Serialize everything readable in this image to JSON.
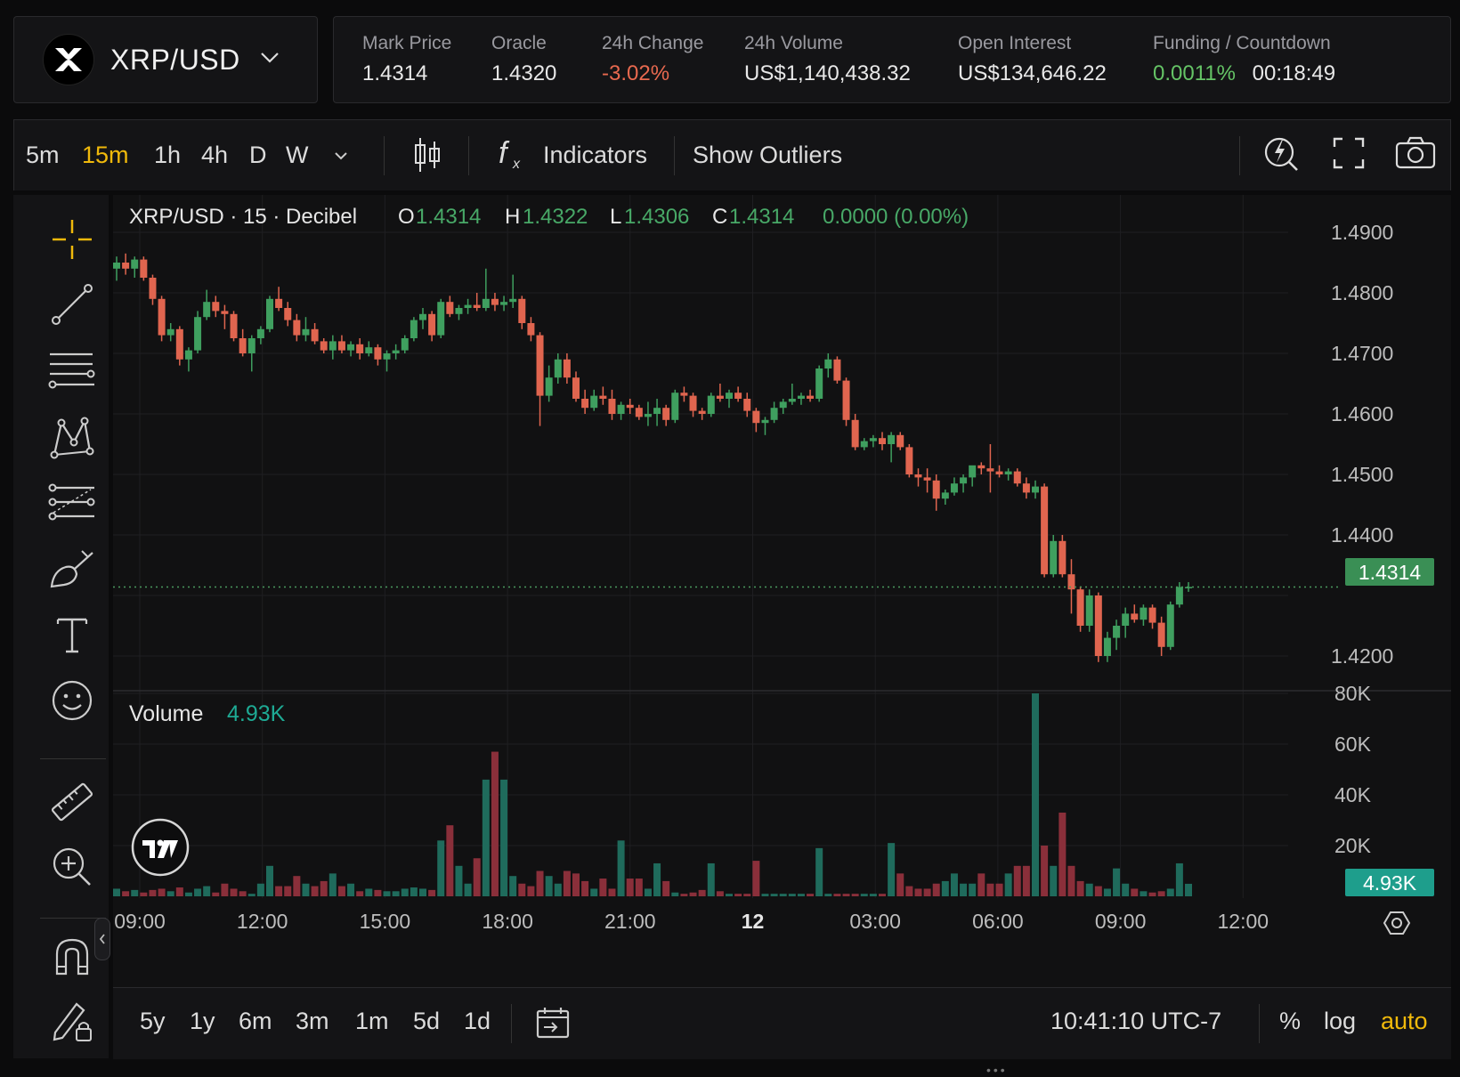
{
  "symbol": {
    "name": "XRP/USD"
  },
  "stats": {
    "mark_price": {
      "label": "Mark Price",
      "value": "1.4314"
    },
    "oracle": {
      "label": "Oracle",
      "value": "1.4320"
    },
    "change_24h": {
      "label": "24h Change",
      "value": "-3.02%"
    },
    "volume_24h": {
      "label": "24h Volume",
      "value": "US$1,140,438.32"
    },
    "open_interest": {
      "label": "Open Interest",
      "value": "US$134,646.22"
    },
    "funding": {
      "label": "Funding / Countdown",
      "rate": "0.0011%",
      "countdown": "00:18:49"
    }
  },
  "toolbar": {
    "intervals": [
      "5m",
      "15m",
      "1h",
      "4h",
      "D",
      "W"
    ],
    "active_interval": "15m",
    "indicators_label": "Indicators",
    "outliers_label": "Show Outliers"
  },
  "legend": {
    "title": "XRP/USD · 15 · Decibel",
    "o_label": "O",
    "o": "1.4314",
    "h_label": "H",
    "h": "1.4322",
    "l_label": "L",
    "l": "1.4306",
    "c_label": "C",
    "c": "1.4314",
    "change": "0.0000 (0.00%)",
    "volume_label": "Volume",
    "volume_value": "4.93K"
  },
  "colors": {
    "up": "#3f9f5f",
    "down": "#e0654f",
    "vol_up": "#1f6b5c",
    "vol_down": "#8a2f3a",
    "accent": "#f0b90b",
    "price_tag": "#3a8f55",
    "vol_tag": "#1e9e8c"
  },
  "price_axis": {
    "ticks": [
      "1.4900",
      "1.4800",
      "1.4700",
      "1.4600",
      "1.4500",
      "1.4400",
      "1.4200"
    ],
    "current": "1.4314"
  },
  "volume_axis": {
    "ticks": [
      "80K",
      "60K",
      "40K",
      "20K"
    ],
    "current": "4.93K"
  },
  "time_axis": {
    "ticks": [
      "09:00",
      "12:00",
      "15:00",
      "18:00",
      "21:00",
      "12",
      "03:00",
      "06:00",
      "09:00",
      "12:00"
    ]
  },
  "ranges": [
    "5y",
    "1y",
    "6m",
    "3m",
    "1m",
    "5d",
    "1d"
  ],
  "bottom": {
    "clock": "10:41:10 UTC-7",
    "percent": "%",
    "log": "log",
    "auto": "auto"
  },
  "chart_data": {
    "type": "candlestick",
    "ylim": [
      1.4175,
      1.4925
    ],
    "vol_ylim": [
      0,
      80000
    ],
    "candles": [
      [
        1.484,
        1.486,
        1.482,
        1.485,
        3000
      ],
      [
        1.485,
        1.4865,
        1.483,
        1.484,
        2000
      ],
      [
        1.484,
        1.486,
        1.4825,
        1.4855,
        2500
      ],
      [
        1.4855,
        1.486,
        1.482,
        1.4825,
        1500
      ],
      [
        1.4825,
        1.483,
        1.478,
        1.479,
        2500
      ],
      [
        1.479,
        1.4795,
        1.472,
        1.473,
        3000
      ],
      [
        1.473,
        1.475,
        1.472,
        1.474,
        2000
      ],
      [
        1.474,
        1.4745,
        1.468,
        1.469,
        3500
      ],
      [
        1.469,
        1.471,
        1.467,
        1.4705,
        1500
      ],
      [
        1.4705,
        1.477,
        1.47,
        1.476,
        3000
      ],
      [
        1.476,
        1.4805,
        1.4755,
        1.4785,
        4000
      ],
      [
        1.4785,
        1.4795,
        1.476,
        1.477,
        1500
      ],
      [
        1.477,
        1.478,
        1.474,
        1.4765,
        5000
      ],
      [
        1.4765,
        1.477,
        1.472,
        1.4725,
        3000
      ],
      [
        1.4725,
        1.474,
        1.4695,
        1.47,
        2000
      ],
      [
        1.47,
        1.473,
        1.467,
        1.4725,
        1000
      ],
      [
        1.4725,
        1.4745,
        1.4715,
        1.474,
        5000
      ],
      [
        1.474,
        1.4795,
        1.4735,
        1.479,
        12000
      ],
      [
        1.479,
        1.481,
        1.477,
        1.4775,
        4000
      ],
      [
        1.4775,
        1.4785,
        1.4745,
        1.4755,
        4000
      ],
      [
        1.4755,
        1.4765,
        1.472,
        1.473,
        8000
      ],
      [
        1.473,
        1.476,
        1.472,
        1.474,
        5000
      ],
      [
        1.474,
        1.475,
        1.4715,
        1.472,
        4000
      ],
      [
        1.472,
        1.4725,
        1.47,
        1.4705,
        6000
      ],
      [
        1.4705,
        1.473,
        1.469,
        1.472,
        9000
      ],
      [
        1.472,
        1.473,
        1.47,
        1.4705,
        4000
      ],
      [
        1.4705,
        1.472,
        1.4695,
        1.4715,
        5000
      ],
      [
        1.4715,
        1.4725,
        1.469,
        1.47,
        2000
      ],
      [
        1.47,
        1.472,
        1.4695,
        1.471,
        3000
      ],
      [
        1.471,
        1.4715,
        1.468,
        1.469,
        2500
      ],
      [
        1.469,
        1.4705,
        1.467,
        1.47,
        2000
      ],
      [
        1.47,
        1.4715,
        1.469,
        1.4705,
        2000
      ],
      [
        1.4705,
        1.473,
        1.47,
        1.4725,
        3000
      ],
      [
        1.4725,
        1.476,
        1.472,
        1.4755,
        3500
      ],
      [
        1.4755,
        1.4775,
        1.474,
        1.4765,
        3000
      ],
      [
        1.4765,
        1.477,
        1.472,
        1.473,
        2500
      ],
      [
        1.473,
        1.479,
        1.4725,
        1.4785,
        22000
      ],
      [
        1.4785,
        1.4795,
        1.476,
        1.4765,
        28000
      ],
      [
        1.4765,
        1.478,
        1.4755,
        1.4775,
        12000
      ],
      [
        1.4775,
        1.479,
        1.4765,
        1.478,
        5000
      ],
      [
        1.478,
        1.48,
        1.477,
        1.4775,
        15000
      ],
      [
        1.4775,
        1.484,
        1.477,
        1.479,
        46000
      ],
      [
        1.479,
        1.48,
        1.477,
        1.478,
        57000
      ],
      [
        1.478,
        1.4795,
        1.477,
        1.4785,
        46000
      ],
      [
        1.4785,
        1.483,
        1.4775,
        1.479,
        8000
      ],
      [
        1.479,
        1.4795,
        1.474,
        1.475,
        5000
      ],
      [
        1.475,
        1.476,
        1.472,
        1.473,
        4000
      ],
      [
        1.473,
        1.4735,
        1.458,
        1.463,
        10000
      ],
      [
        1.463,
        1.468,
        1.462,
        1.466,
        8000
      ],
      [
        1.466,
        1.47,
        1.465,
        1.469,
        5000
      ],
      [
        1.469,
        1.47,
        1.465,
        1.466,
        10000
      ],
      [
        1.466,
        1.467,
        1.462,
        1.4625,
        9000
      ],
      [
        1.4625,
        1.464,
        1.46,
        1.461,
        6000
      ],
      [
        1.461,
        1.464,
        1.4605,
        1.463,
        3000
      ],
      [
        1.463,
        1.4645,
        1.4615,
        1.4625,
        7000
      ],
      [
        1.4625,
        1.464,
        1.459,
        1.46,
        3000
      ],
      [
        1.46,
        1.462,
        1.459,
        1.4615,
        22000
      ],
      [
        1.4615,
        1.4625,
        1.46,
        1.461,
        7000
      ],
      [
        1.461,
        1.4615,
        1.459,
        1.4595,
        7000
      ],
      [
        1.4595,
        1.462,
        1.458,
        1.46,
        3000
      ],
      [
        1.46,
        1.4625,
        1.458,
        1.461,
        13000
      ],
      [
        1.461,
        1.4615,
        1.458,
        1.459,
        6000
      ],
      [
        1.459,
        1.464,
        1.4585,
        1.4635,
        1500
      ],
      [
        1.4635,
        1.4645,
        1.462,
        1.463,
        1000
      ],
      [
        1.463,
        1.4635,
        1.4595,
        1.4605,
        1500
      ],
      [
        1.4605,
        1.461,
        1.459,
        1.46,
        2500
      ],
      [
        1.46,
        1.4635,
        1.4595,
        1.463,
        13000
      ],
      [
        1.463,
        1.465,
        1.462,
        1.4625,
        2000
      ],
      [
        1.4625,
        1.464,
        1.461,
        1.4635,
        1000
      ],
      [
        1.4635,
        1.4645,
        1.462,
        1.4625,
        1000
      ],
      [
        1.4625,
        1.4635,
        1.4595,
        1.4605,
        1000
      ],
      [
        1.4605,
        1.461,
        1.457,
        1.4585,
        14000
      ],
      [
        1.4585,
        1.4595,
        1.4565,
        1.459,
        1000
      ],
      [
        1.459,
        1.462,
        1.4585,
        1.461,
        1000
      ],
      [
        1.461,
        1.4625,
        1.46,
        1.462,
        1000
      ],
      [
        1.462,
        1.465,
        1.4615,
        1.4625,
        1000
      ],
      [
        1.4625,
        1.4635,
        1.4615,
        1.463,
        1000
      ],
      [
        1.463,
        1.464,
        1.462,
        1.4625,
        1000
      ],
      [
        1.4625,
        1.468,
        1.462,
        1.4675,
        19000
      ],
      [
        1.4675,
        1.47,
        1.466,
        1.469,
        1000
      ],
      [
        1.469,
        1.4695,
        1.465,
        1.4655,
        1000
      ],
      [
        1.4655,
        1.466,
        1.458,
        1.459,
        1000
      ],
      [
        1.459,
        1.46,
        1.454,
        1.4545,
        1000
      ],
      [
        1.4545,
        1.456,
        1.454,
        1.4555,
        1000
      ],
      [
        1.4555,
        1.4565,
        1.4545,
        1.456,
        1000
      ],
      [
        1.456,
        1.457,
        1.454,
        1.455,
        1000
      ],
      [
        1.455,
        1.457,
        1.452,
        1.4565,
        21000
      ],
      [
        1.4565,
        1.457,
        1.454,
        1.4545,
        9000
      ],
      [
        1.4545,
        1.455,
        1.4495,
        1.45,
        4000
      ],
      [
        1.45,
        1.451,
        1.448,
        1.4495,
        3000
      ],
      [
        1.4495,
        1.451,
        1.447,
        1.449,
        3000
      ],
      [
        1.449,
        1.45,
        1.444,
        1.446,
        5000
      ],
      [
        1.446,
        1.4475,
        1.445,
        1.447,
        6000
      ],
      [
        1.447,
        1.4495,
        1.4465,
        1.4485,
        9000
      ],
      [
        1.4485,
        1.45,
        1.447,
        1.4495,
        5000
      ],
      [
        1.4495,
        1.451,
        1.448,
        1.4515,
        5000
      ],
      [
        1.4515,
        1.452,
        1.45,
        1.451,
        9000
      ],
      [
        1.451,
        1.455,
        1.447,
        1.4505,
        5000
      ],
      [
        1.4505,
        1.4515,
        1.4495,
        1.45,
        5000
      ],
      [
        1.45,
        1.451,
        1.449,
        1.4505,
        9000
      ],
      [
        1.4505,
        1.451,
        1.448,
        1.4485,
        12000
      ],
      [
        1.4485,
        1.4495,
        1.446,
        1.447,
        12000
      ],
      [
        1.447,
        1.449,
        1.446,
        1.448,
        80000
      ],
      [
        1.448,
        1.4485,
        1.433,
        1.4335,
        20000
      ],
      [
        1.4335,
        1.44,
        1.433,
        1.439,
        12000
      ],
      [
        1.439,
        1.44,
        1.433,
        1.4335,
        33000
      ],
      [
        1.4335,
        1.436,
        1.427,
        1.431,
        12000
      ],
      [
        1.431,
        1.4315,
        1.424,
        1.425,
        6000
      ],
      [
        1.425,
        1.431,
        1.424,
        1.43,
        5000
      ],
      [
        1.43,
        1.4305,
        1.419,
        1.42,
        4000
      ],
      [
        1.42,
        1.424,
        1.419,
        1.423,
        3000
      ],
      [
        1.423,
        1.426,
        1.421,
        1.425,
        11000
      ],
      [
        1.425,
        1.428,
        1.423,
        1.427,
        5000
      ],
      [
        1.427,
        1.4285,
        1.4255,
        1.426,
        3000
      ],
      [
        1.426,
        1.4285,
        1.425,
        1.428,
        2000
      ],
      [
        1.428,
        1.4285,
        1.4245,
        1.4255,
        1500
      ],
      [
        1.4255,
        1.4265,
        1.42,
        1.4215,
        2000
      ],
      [
        1.4215,
        1.429,
        1.421,
        1.4285,
        3000
      ],
      [
        1.4285,
        1.4322,
        1.428,
        1.4314,
        13000
      ],
      [
        1.4314,
        1.4322,
        1.4306,
        1.4314,
        4930
      ]
    ]
  }
}
